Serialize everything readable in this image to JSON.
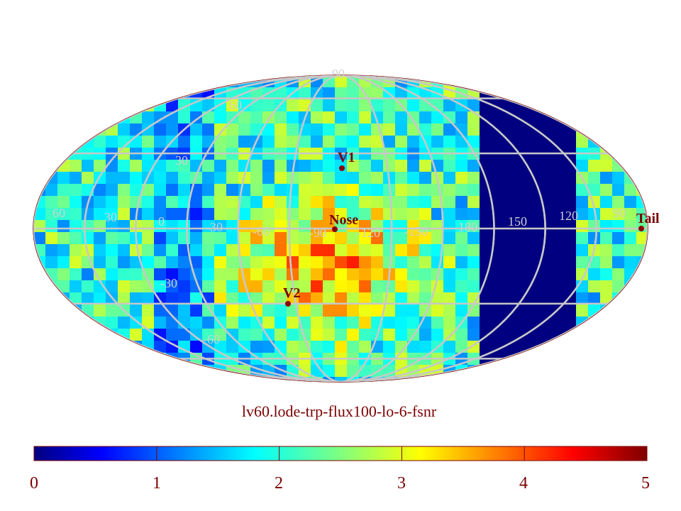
{
  "map": {
    "title": "lv60.lode-trp-flux100-lo-6-fsnr",
    "projection": "Mollweide (Aitoff-style all-sky)",
    "markers": [
      {
        "id": "V1",
        "label": "V1"
      },
      {
        "id": "Nose",
        "label": "Nose"
      },
      {
        "id": "V2",
        "label": "V2"
      },
      {
        "id": "Tail",
        "label": "Tail"
      }
    ],
    "longitude_labels": [
      "60",
      "30",
      "0",
      "-30",
      "-60",
      "-90",
      "-120",
      "-150",
      "180",
      "150",
      "120",
      "90"
    ],
    "latitude_labels": [
      "90",
      "60",
      "30",
      "-30",
      "-60"
    ],
    "colors": {
      "frame": "#7a0000",
      "grid": "#c8c8c8",
      "marker": "#8b0000"
    }
  },
  "colorbar": {
    "min": 0,
    "max": 5,
    "tick_labels": [
      "0",
      "1",
      "2",
      "3",
      "4",
      "5"
    ],
    "colormap": "jet"
  }
}
